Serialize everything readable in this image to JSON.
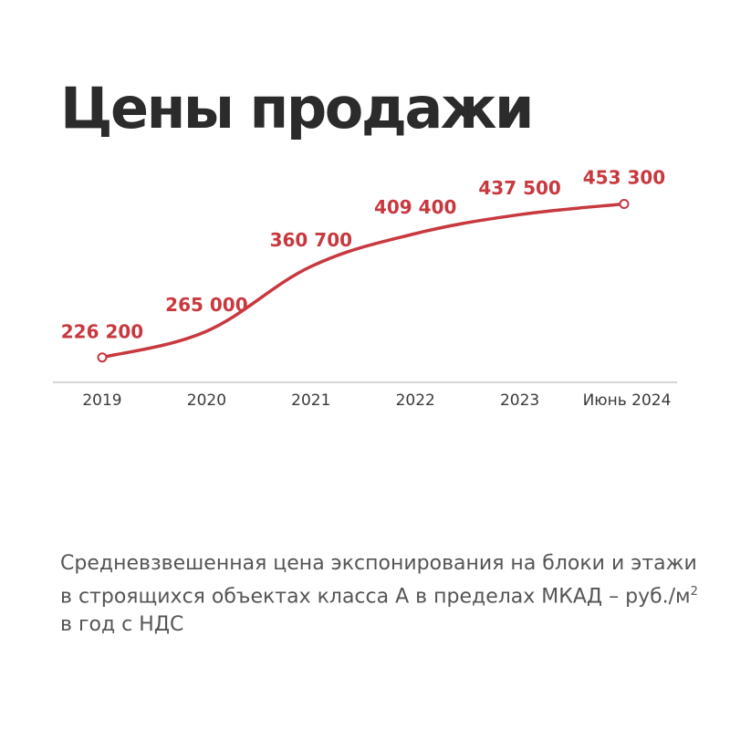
{
  "title": "Цены продажи",
  "caption": {
    "prefix": "Средневзвешенная цена экспонирования на блоки и этажи в строящихся объектах класса А в пределах МКАД – руб./м",
    "superscript": "2",
    "suffix": " в год с НДС"
  },
  "colors": {
    "accent": "#c8393f",
    "axis": "#c8c8c8",
    "title": "#2b2b2b",
    "tick": "#3a3a3a",
    "caption": "#555555"
  },
  "chart_data": {
    "type": "line",
    "categories": [
      "2019",
      "2020",
      "2021",
      "2022",
      "2023",
      "Июнь 2024"
    ],
    "values": [
      226200,
      265000,
      360700,
      409400,
      437500,
      453300
    ],
    "value_labels": [
      "226 200",
      "265 000",
      "360 700",
      "409 400",
      "437 500",
      "453 300"
    ],
    "title": "",
    "xlabel": "",
    "ylabel": "",
    "ylim": [
      188000,
      512000
    ],
    "grid": false,
    "legend": "none",
    "markers": "endpoints"
  }
}
